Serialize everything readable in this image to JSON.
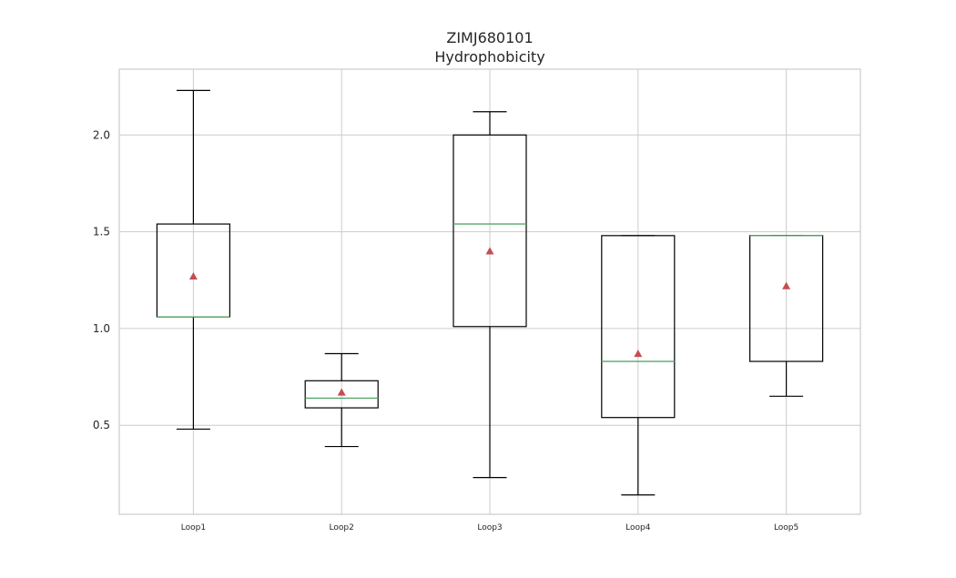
{
  "chart_data": {
    "type": "box",
    "title": "ZIMJ680101",
    "subtitle": "Hydrophobicity",
    "xlabel": "",
    "ylabel": "",
    "ylim": [
      0.04,
      2.34
    ],
    "yticks": [
      0.5,
      1.0,
      1.5,
      2.0
    ],
    "ytick_labels": [
      "0.5",
      "1.0",
      "1.5",
      "2.0"
    ],
    "grid": true,
    "categories": [
      "Loop1",
      "Loop2",
      "Loop3",
      "Loop4",
      "Loop5"
    ],
    "boxes": [
      {
        "whisker_low": 0.48,
        "q1": 1.06,
        "median": 1.06,
        "q3": 1.54,
        "whisker_high": 2.23,
        "mean": 1.27
      },
      {
        "whisker_low": 0.39,
        "q1": 0.59,
        "median": 0.64,
        "q3": 0.73,
        "whisker_high": 0.87,
        "mean": 0.67
      },
      {
        "whisker_low": 0.23,
        "q1": 1.01,
        "median": 1.54,
        "q3": 2.0,
        "whisker_high": 2.12,
        "mean": 1.4
      },
      {
        "whisker_low": 0.14,
        "q1": 0.54,
        "median": 0.83,
        "q3": 1.48,
        "whisker_high": 1.48,
        "mean": 0.87
      },
      {
        "whisker_low": 0.65,
        "q1": 0.83,
        "median": 1.48,
        "q3": 1.48,
        "whisker_high": 1.48,
        "mean": 1.22
      }
    ],
    "colors": {
      "box": "#000000",
      "median": "#55a868",
      "mean": "#c44e52",
      "grid": "#cccccc",
      "frame": "#cccccc"
    }
  }
}
